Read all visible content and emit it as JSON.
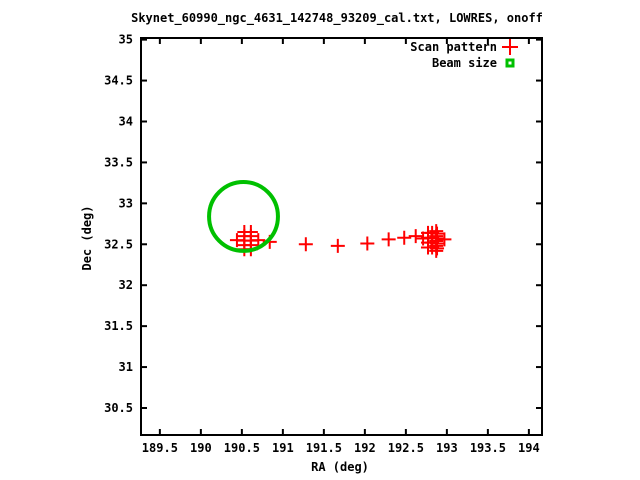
{
  "window": {
    "background_color": "#ffffff",
    "text_color": "#000000",
    "border_color": "#000000"
  },
  "chart_data": {
    "type": "scatter",
    "title": "Skynet_60990_ngc_4631_142748_93209_cal.txt, LOWRES, onoff",
    "xlabel": "RA (deg)",
    "ylabel": "Dec (deg)",
    "xlim": [
      189.27,
      194.16
    ],
    "ylim": [
      30.17,
      35.02
    ],
    "grid": false,
    "legend_position": "top-right-inside",
    "x_tick_values": [
      189.5,
      190,
      190.5,
      191,
      191.5,
      192,
      192.5,
      193,
      193.5,
      194
    ],
    "x_tick_labels": [
      "189.5",
      "190",
      "190.5",
      "191",
      "191.5",
      "192",
      "192.5",
      "193",
      "193.5",
      "194"
    ],
    "y_tick_values": [
      35,
      34.5,
      34,
      33.5,
      33,
      32.5,
      32,
      31.5,
      31,
      30.5
    ],
    "y_tick_labels": [
      "35",
      "34.5",
      "34",
      "33.5",
      "33",
      "32.5",
      "32",
      "31.5",
      "31",
      "30.5"
    ],
    "series": [
      {
        "name": "Scan pattern",
        "marker": "plus",
        "color": "#ff0000",
        "points": [
          [
            190.44,
            32.55
          ],
          [
            190.7,
            32.55
          ],
          [
            190.53,
            32.44
          ],
          [
            190.53,
            32.49
          ],
          [
            190.53,
            32.545
          ],
          [
            190.53,
            32.6
          ],
          [
            190.53,
            32.65
          ],
          [
            190.61,
            32.44
          ],
          [
            190.61,
            32.49
          ],
          [
            190.61,
            32.545
          ],
          [
            190.61,
            32.6
          ],
          [
            190.61,
            32.65
          ],
          [
            190.84,
            32.53
          ],
          [
            191.28,
            32.5
          ],
          [
            191.67,
            32.48
          ],
          [
            192.03,
            32.51
          ],
          [
            192.29,
            32.56
          ],
          [
            192.48,
            32.58
          ],
          [
            192.62,
            32.6
          ],
          [
            192.71,
            32.57
          ],
          [
            192.77,
            32.46
          ],
          [
            192.77,
            32.52
          ],
          [
            192.77,
            32.58
          ],
          [
            192.77,
            32.64
          ],
          [
            192.82,
            32.46
          ],
          [
            192.82,
            32.52
          ],
          [
            192.82,
            32.58
          ],
          [
            192.82,
            32.64
          ],
          [
            192.87,
            32.42
          ],
          [
            192.87,
            32.48
          ],
          [
            192.87,
            32.54
          ],
          [
            192.87,
            32.6
          ],
          [
            192.87,
            32.66
          ],
          [
            192.88,
            32.45
          ],
          [
            192.88,
            32.51
          ],
          [
            192.88,
            32.57
          ],
          [
            192.88,
            32.63
          ],
          [
            192.97,
            32.56
          ]
        ]
      },
      {
        "name": "Beam size",
        "marker": "open-circle",
        "color": "#00c000",
        "center": [
          190.52,
          32.84
        ],
        "radius_deg": 0.42
      }
    ],
    "legend": [
      {
        "label": "Scan pattern",
        "marker": "plus",
        "color": "#ff0000"
      },
      {
        "label": "Beam size",
        "marker": "filled-square-dot",
        "color": "#00c000"
      }
    ]
  }
}
